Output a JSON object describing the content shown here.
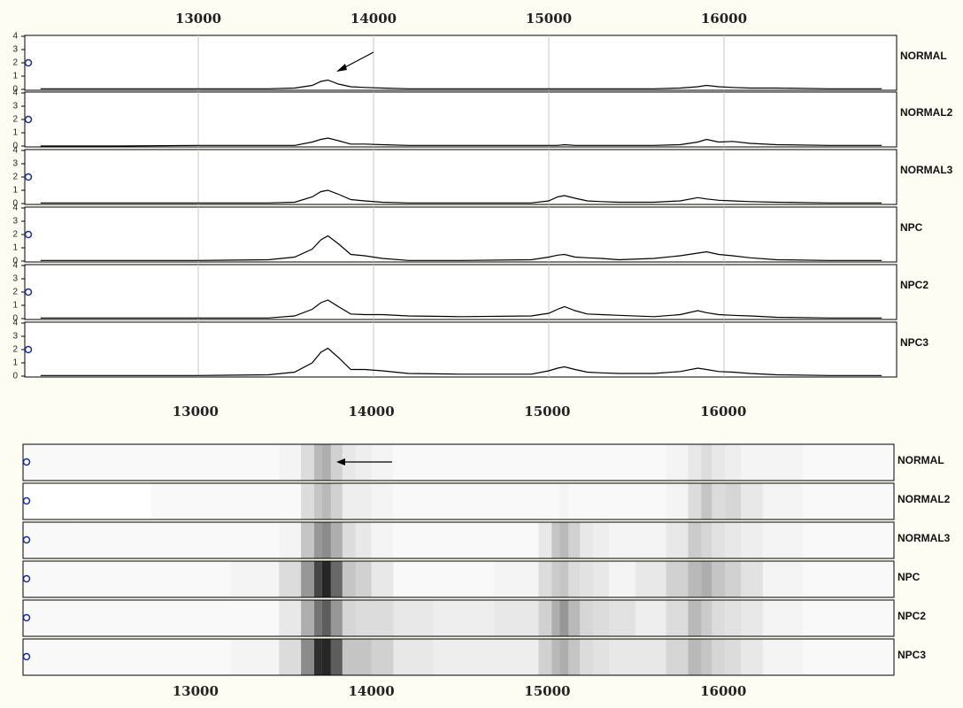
{
  "chart_data": [
    {
      "type": "line",
      "xlim": [
        12010,
        16985
      ],
      "xticks": [
        13000,
        14000,
        15000,
        16000
      ],
      "ylim": [
        0,
        4
      ],
      "yticks": [
        0,
        1,
        2,
        3,
        4
      ],
      "x": [
        12100,
        12500,
        13000,
        13400,
        13550,
        13650,
        13700,
        13740,
        13800,
        13870,
        13950,
        14050,
        14200,
        14500,
        14900,
        15000,
        15050,
        15090,
        15150,
        15220,
        15300,
        15400,
        15600,
        15750,
        15850,
        15900,
        15970,
        16050,
        16150,
        16300,
        16600,
        16900
      ],
      "series": [
        {
          "name": "NORMAL",
          "values": [
            0.05,
            0.05,
            0.05,
            0.05,
            0.1,
            0.3,
            0.6,
            0.7,
            0.4,
            0.2,
            0.15,
            0.1,
            0.05,
            0.05,
            0.05,
            0.05,
            0.05,
            0.05,
            0.05,
            0.05,
            0.05,
            0.05,
            0.05,
            0.1,
            0.2,
            0.3,
            0.2,
            0.15,
            0.1,
            0.1,
            0.05,
            0.05
          ]
        },
        {
          "name": "NORMAL2",
          "values": [
            0,
            0,
            0.05,
            0.05,
            0.05,
            0.3,
            0.5,
            0.6,
            0.4,
            0.15,
            0.15,
            0.1,
            0.05,
            0.05,
            0.05,
            0.05,
            0.05,
            0.1,
            0.05,
            0.05,
            0.05,
            0.05,
            0.05,
            0.1,
            0.3,
            0.5,
            0.3,
            0.35,
            0.2,
            0.1,
            0.05,
            0.05
          ]
        },
        {
          "name": "NORMAL3",
          "values": [
            0.05,
            0.05,
            0.05,
            0.05,
            0.1,
            0.5,
            0.9,
            1.0,
            0.7,
            0.3,
            0.2,
            0.1,
            0.05,
            0.05,
            0.05,
            0.2,
            0.5,
            0.6,
            0.4,
            0.2,
            0.15,
            0.1,
            0.1,
            0.2,
            0.45,
            0.35,
            0.25,
            0.2,
            0.15,
            0.1,
            0.05,
            0.05
          ]
        },
        {
          "name": "NPC",
          "values": [
            0.05,
            0.05,
            0.05,
            0.1,
            0.3,
            0.9,
            1.6,
            1.9,
            1.3,
            0.5,
            0.4,
            0.2,
            0.05,
            0.05,
            0.1,
            0.3,
            0.45,
            0.5,
            0.3,
            0.25,
            0.2,
            0.1,
            0.2,
            0.4,
            0.6,
            0.7,
            0.5,
            0.4,
            0.25,
            0.1,
            0.05,
            0.05
          ]
        },
        {
          "name": "NPC2",
          "values": [
            0.05,
            0.05,
            0.05,
            0.05,
            0.2,
            0.7,
            1.2,
            1.4,
            0.9,
            0.35,
            0.3,
            0.3,
            0.2,
            0.15,
            0.2,
            0.4,
            0.7,
            0.9,
            0.6,
            0.35,
            0.3,
            0.25,
            0.15,
            0.3,
            0.6,
            0.45,
            0.3,
            0.25,
            0.2,
            0.1,
            0.05,
            0.05
          ]
        },
        {
          "name": "NPC3",
          "values": [
            0.05,
            0.05,
            0.05,
            0.1,
            0.3,
            1.0,
            1.8,
            2.1,
            1.4,
            0.5,
            0.5,
            0.4,
            0.2,
            0.15,
            0.15,
            0.4,
            0.6,
            0.7,
            0.5,
            0.3,
            0.25,
            0.2,
            0.2,
            0.35,
            0.6,
            0.5,
            0.35,
            0.3,
            0.2,
            0.1,
            0.05,
            0.05
          ]
        }
      ]
    },
    {
      "type": "gel",
      "xlim": [
        12020,
        16970
      ],
      "xticks": [
        13000,
        14000,
        15000,
        16000
      ],
      "bottom_xticks": [
        13000,
        14000,
        15000,
        16000
      ],
      "series": [
        {
          "name": "NORMAL"
        },
        {
          "name": "NORMAL2"
        },
        {
          "name": "NORMAL3"
        },
        {
          "name": "NPC"
        },
        {
          "name": "NPC2"
        },
        {
          "name": "NPC3"
        }
      ]
    }
  ]
}
